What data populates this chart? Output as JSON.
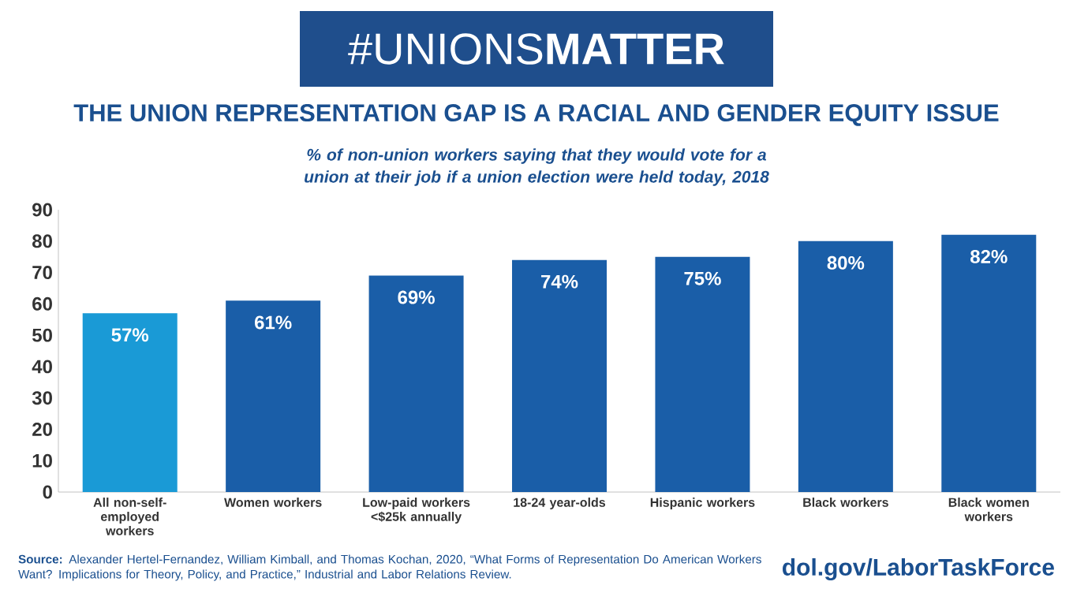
{
  "chart_data": {
    "type": "bar",
    "title": "THE UNION REPRESENTATION GAP IS A RACIAL AND GENDER EQUITY ISSUE",
    "subtitle": "% of non-union workers saying that they would vote for a union at their job if a union election were held today, 2018",
    "annotations": [
      "#UNIONS**MATTER**",
      "**Source:** Alexander Hertel-Fernandez, William Kimball, and Thomas Kochan, 2020, “What Forms of Representation Do American Workers Want? Implications for Theory, Policy, and Practice,” Industrial and Labor Relations Review.",
      "dol.gov/LaborTaskForce"
    ],
    "categories": [
      "All non-self-employed workers",
      "Women workers",
      "Low-paid workers <$25k annually",
      "18-24 year-olds",
      "Hispanic workers",
      "Black workers",
      "Black women workers"
    ],
    "values": [
      57,
      61,
      69,
      74,
      75,
      80,
      82
    ],
    "value_labels": [
      "57%",
      "61%",
      "69%",
      "74%",
      "75%",
      "80%",
      "82%"
    ],
    "colors": [
      "#1a9ad6",
      "#1a5ea8",
      "#1a5ea8",
      "#1a5ea8",
      "#1a5ea8",
      "#1a5ea8",
      "#1a5ea8"
    ],
    "ylim": [
      0,
      90
    ],
    "yticks": [
      0,
      10,
      20,
      30,
      40,
      50,
      60,
      70,
      80,
      90
    ],
    "grid": false
  }
}
